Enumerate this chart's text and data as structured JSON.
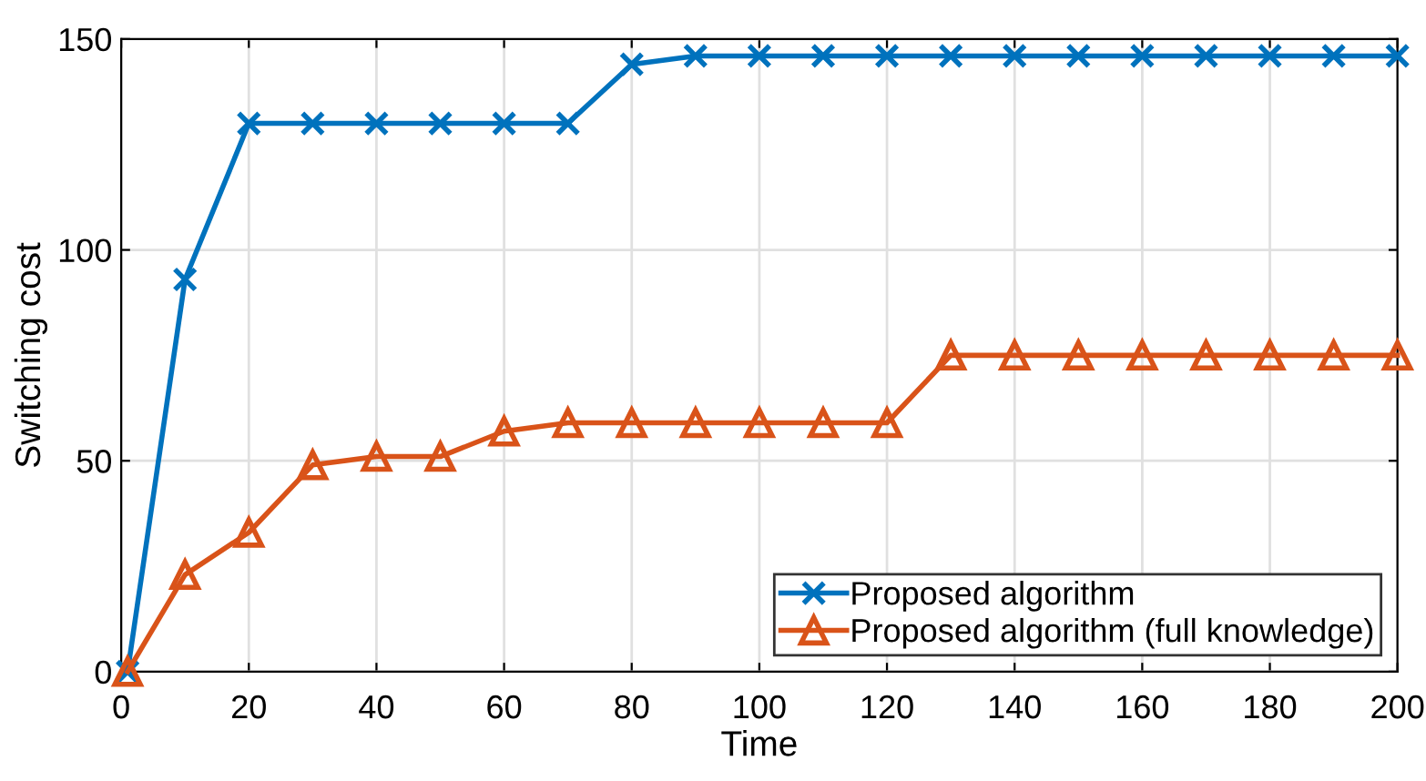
{
  "chart_data": {
    "type": "line",
    "xlabel": "Time",
    "ylabel": "Switching cost",
    "x": [
      1,
      10,
      20,
      30,
      40,
      50,
      60,
      70,
      80,
      90,
      100,
      110,
      120,
      130,
      140,
      150,
      160,
      170,
      180,
      190,
      200
    ],
    "series": [
      {
        "name": "Proposed algorithm",
        "color": "#0072bd",
        "marker": "cross",
        "values": [
          0,
          93,
          130,
          130,
          130,
          130,
          130,
          130,
          144,
          146,
          146,
          146,
          146,
          146,
          146,
          146,
          146,
          146,
          146,
          146,
          146
        ]
      },
      {
        "name": "Proposed algorithm (full knowledge)",
        "color": "#d95319",
        "marker": "triangle",
        "values": [
          0,
          23,
          33,
          49,
          51,
          51,
          57,
          59,
          59,
          59,
          59,
          59,
          59,
          75,
          75,
          75,
          75,
          75,
          75,
          75,
          75
        ]
      }
    ],
    "xlim": [
      0,
      200
    ],
    "xticks": [
      0,
      20,
      40,
      60,
      80,
      100,
      120,
      140,
      160,
      180,
      200
    ],
    "ylim": [
      0,
      150
    ],
    "yticks": [
      0,
      50,
      100,
      150
    ],
    "grid": true,
    "legend": "bottom right",
    "line_style": "solid"
  }
}
